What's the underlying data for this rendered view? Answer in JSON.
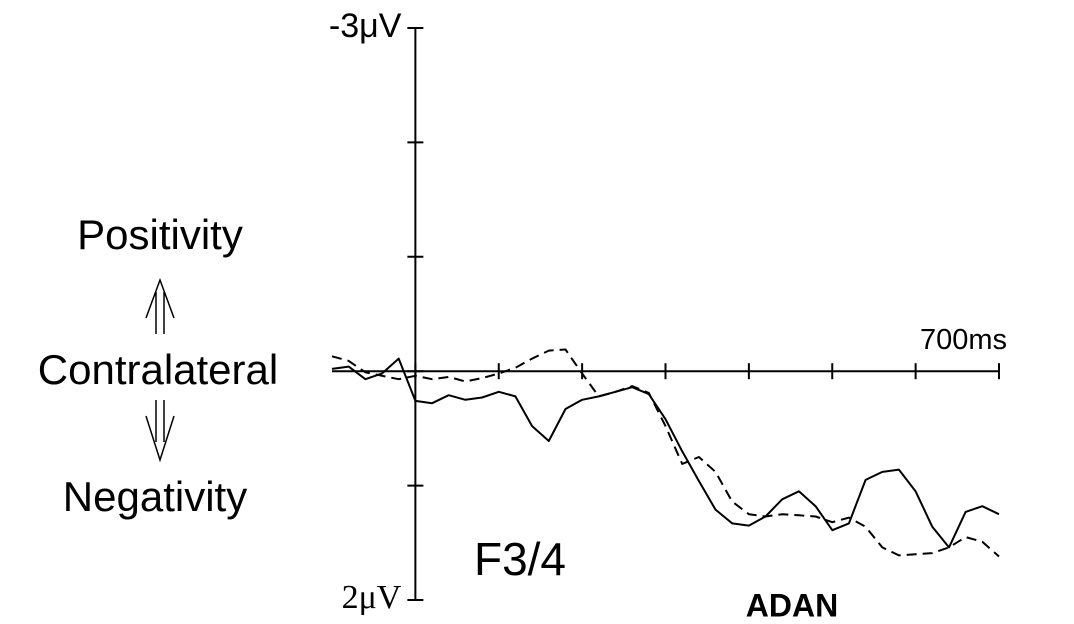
{
  "chart_data": {
    "type": "line",
    "annotations": {
      "top": "Positivity",
      "middle": "Contralateral",
      "bottom": "Negativity",
      "site": "F3/4",
      "component": "ADAN"
    },
    "x": [
      -100,
      -80,
      -60,
      -40,
      -20,
      0,
      20,
      40,
      60,
      80,
      100,
      120,
      140,
      160,
      180,
      200,
      220,
      240,
      260,
      280,
      300,
      320,
      340,
      360,
      380,
      400,
      420,
      440,
      460,
      480,
      500,
      520,
      540,
      560,
      580,
      600,
      620,
      640,
      660,
      680,
      700
    ],
    "series": [
      {
        "color": "#000000",
        "dash": null,
        "values": [
          -0.02,
          -0.04,
          0.07,
          0.02,
          -0.11,
          0.26,
          0.28,
          0.21,
          0.25,
          0.23,
          0.18,
          0.22,
          0.48,
          0.61,
          0.33,
          0.25,
          0.22,
          0.18,
          0.14,
          0.2,
          0.42,
          0.7,
          0.96,
          1.21,
          1.33,
          1.35,
          1.27,
          1.12,
          1.05,
          1.18,
          1.39,
          1.33,
          0.95,
          0.88,
          0.86,
          1.05,
          1.36,
          1.54,
          1.23,
          1.18,
          1.25
        ]
      },
      {
        "color": "#000000",
        "dash": "10,6",
        "values": [
          -0.13,
          -0.09,
          0.01,
          0.04,
          0.07,
          0.04,
          0.07,
          0.05,
          0.09,
          0.06,
          0.02,
          -0.03,
          -0.11,
          -0.18,
          -0.19,
          0.02,
          0.22,
          0.18,
          0.13,
          0.19,
          0.48,
          0.81,
          0.75,
          0.88,
          1.14,
          1.25,
          1.27,
          1.25,
          1.26,
          1.27,
          1.32,
          1.28,
          1.36,
          1.54,
          1.61,
          1.6,
          1.59,
          1.54,
          1.45,
          1.49,
          1.62
        ]
      }
    ],
    "xlim": [
      -100,
      700
    ],
    "xticks": [
      {
        "value": 0,
        "label": null
      },
      {
        "value": 100,
        "label": null
      },
      {
        "value": 200,
        "label": null
      },
      {
        "value": 300,
        "label": null
      },
      {
        "value": 400,
        "label": null
      },
      {
        "value": 500,
        "label": null
      },
      {
        "value": 600,
        "label": null
      },
      {
        "value": 700,
        "label": "700ms"
      }
    ],
    "ylim": [
      -3,
      2
    ],
    "y_inverted": true,
    "yticks": [
      {
        "value": -3,
        "label": "-3μV"
      },
      {
        "value": -2,
        "label": null
      },
      {
        "value": -1,
        "label": null
      },
      {
        "value": 0,
        "label": null
      },
      {
        "value": 1,
        "label": null
      },
      {
        "value": 2,
        "label": "2μV"
      }
    ]
  }
}
